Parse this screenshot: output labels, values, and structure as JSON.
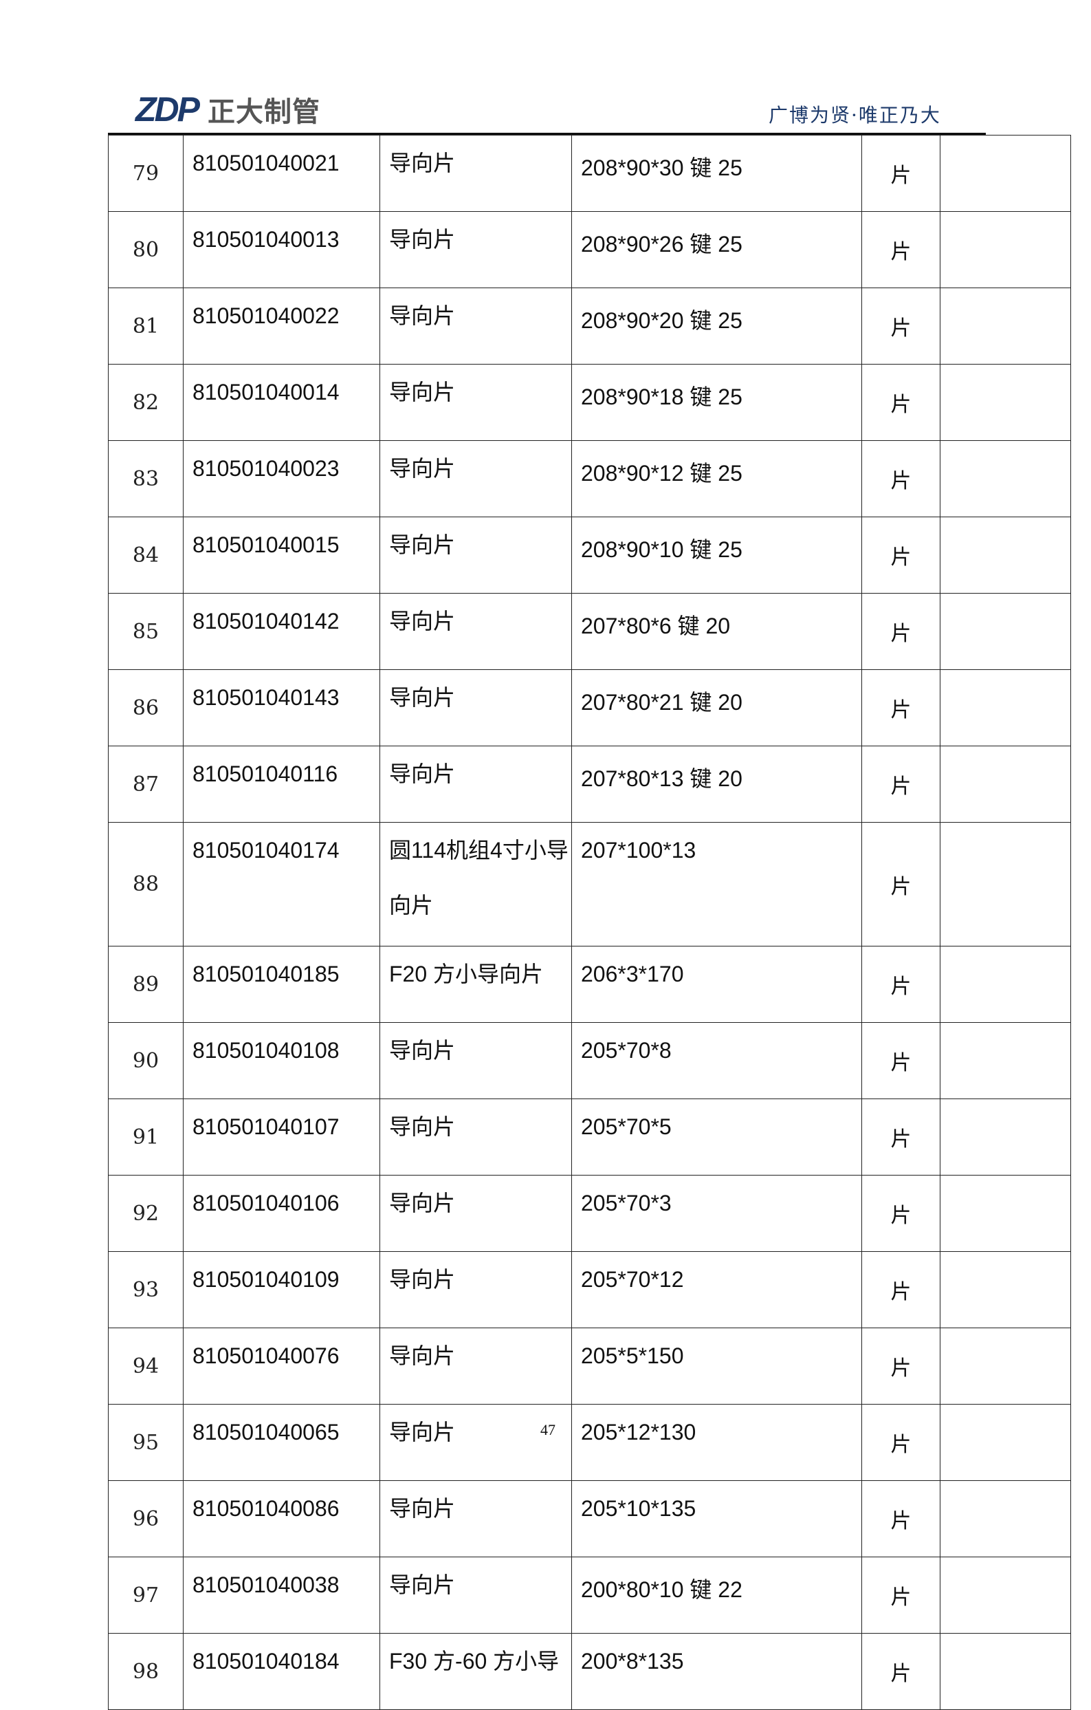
{
  "header": {
    "logo_mark": "ZDP",
    "logo_text": "正大制管",
    "slogan": "广博为贤·唯正乃大",
    "brand_color": "#1d3a6b"
  },
  "table": {
    "rows": [
      {
        "no": "79",
        "code": "810501040021",
        "name": "导向片",
        "spec": "208*90*30 键 25",
        "unit": "片",
        "remark": ""
      },
      {
        "no": "80",
        "code": "810501040013",
        "name": "导向片",
        "spec": "208*90*26 键 25",
        "unit": "片",
        "remark": ""
      },
      {
        "no": "81",
        "code": "810501040022",
        "name": "导向片",
        "spec": "208*90*20 键 25",
        "unit": "片",
        "remark": ""
      },
      {
        "no": "82",
        "code": "810501040014",
        "name": "导向片",
        "spec": "208*90*18 键 25",
        "unit": "片",
        "remark": ""
      },
      {
        "no": "83",
        "code": "810501040023",
        "name": "导向片",
        "spec": "208*90*12 键 25",
        "unit": "片",
        "remark": ""
      },
      {
        "no": "84",
        "code": "810501040015",
        "name": "导向片",
        "spec": "208*90*10 键 25",
        "unit": "片",
        "remark": ""
      },
      {
        "no": "85",
        "code": "810501040142",
        "name": "导向片",
        "spec": "207*80*6 键 20",
        "unit": "片",
        "remark": ""
      },
      {
        "no": "86",
        "code": "810501040143",
        "name": "导向片",
        "spec": "207*80*21 键 20",
        "unit": "片",
        "remark": ""
      },
      {
        "no": "87",
        "code": "810501040116",
        "name": "导向片",
        "spec": "207*80*13 键 20",
        "unit": "片",
        "remark": ""
      },
      {
        "no": "88",
        "code": "810501040174",
        "name": "圆114机组4寸小导向片",
        "spec": "207*100*13",
        "unit": "片",
        "remark": ""
      },
      {
        "no": "89",
        "code": "810501040185",
        "name": "F20 方小导向片",
        "spec": "206*3*170",
        "unit": "片",
        "remark": ""
      },
      {
        "no": "90",
        "code": "810501040108",
        "name": "导向片",
        "spec": "205*70*8",
        "unit": "片",
        "remark": ""
      },
      {
        "no": "91",
        "code": "810501040107",
        "name": "导向片",
        "spec": "205*70*5",
        "unit": "片",
        "remark": ""
      },
      {
        "no": "92",
        "code": "810501040106",
        "name": "导向片",
        "spec": "205*70*3",
        "unit": "片",
        "remark": ""
      },
      {
        "no": "93",
        "code": "810501040109",
        "name": "导向片",
        "spec": "205*70*12",
        "unit": "片",
        "remark": ""
      },
      {
        "no": "94",
        "code": "810501040076",
        "name": "导向片",
        "spec": "205*5*150",
        "unit": "片",
        "remark": ""
      },
      {
        "no": "95",
        "code": "810501040065",
        "name": "导向片",
        "spec": "205*12*130",
        "unit": "片",
        "remark": ""
      },
      {
        "no": "96",
        "code": "810501040086",
        "name": "导向片",
        "spec": "205*10*135",
        "unit": "片",
        "remark": ""
      },
      {
        "no": "97",
        "code": "810501040038",
        "name": "导向片",
        "spec": "200*80*10 键 22",
        "unit": "片",
        "remark": ""
      },
      {
        "no": "98",
        "code": "810501040184",
        "name": "F30 方-60 方小导",
        "spec": "200*8*135",
        "unit": "片",
        "remark": ""
      }
    ]
  },
  "footer": {
    "page_number": "47"
  }
}
